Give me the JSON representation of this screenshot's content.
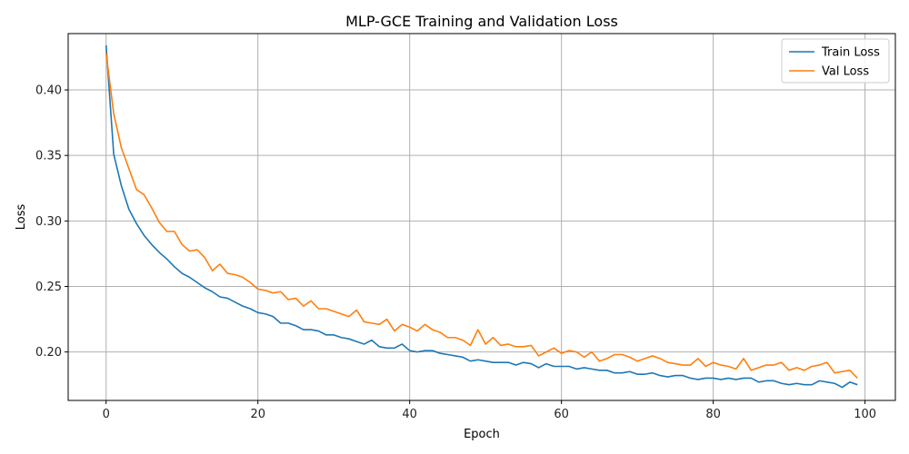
{
  "chart_data": {
    "type": "line",
    "title": "MLP-GCE Training and Validation Loss",
    "xlabel": "Epoch",
    "ylabel": "Loss",
    "xlim": [
      -5,
      104
    ],
    "ylim": [
      0.163,
      0.443
    ],
    "xticks": [
      0,
      20,
      40,
      60,
      80,
      100
    ],
    "yticks": [
      0.2,
      0.25,
      0.3,
      0.35,
      0.4
    ],
    "ytick_labels": [
      "0.20",
      "0.25",
      "0.30",
      "0.35",
      "0.40"
    ],
    "grid": true,
    "legend": "top-right",
    "series": [
      {
        "name": "Train Loss",
        "color": "#1f77b4",
        "values": [
          0.434,
          0.351,
          0.327,
          0.309,
          0.298,
          0.289,
          0.282,
          0.276,
          0.271,
          0.265,
          0.26,
          0.257,
          0.253,
          0.249,
          0.246,
          0.242,
          0.241,
          0.238,
          0.235,
          0.233,
          0.23,
          0.229,
          0.227,
          0.222,
          0.222,
          0.22,
          0.217,
          0.217,
          0.216,
          0.213,
          0.213,
          0.211,
          0.21,
          0.208,
          0.206,
          0.209,
          0.204,
          0.203,
          0.203,
          0.206,
          0.201,
          0.2,
          0.201,
          0.201,
          0.199,
          0.198,
          0.197,
          0.196,
          0.193,
          0.194,
          0.193,
          0.192,
          0.192,
          0.192,
          0.19,
          0.192,
          0.191,
          0.188,
          0.191,
          0.189,
          0.189,
          0.189,
          0.187,
          0.188,
          0.187,
          0.186,
          0.186,
          0.184,
          0.184,
          0.185,
          0.183,
          0.183,
          0.184,
          0.182,
          0.181,
          0.182,
          0.182,
          0.18,
          0.179,
          0.18,
          0.18,
          0.179,
          0.18,
          0.179,
          0.18,
          0.18,
          0.177,
          0.178,
          0.178,
          0.176,
          0.175,
          0.176,
          0.175,
          0.175,
          0.178,
          0.177,
          0.176,
          0.173,
          0.177,
          0.175
        ]
      },
      {
        "name": "Val Loss",
        "color": "#ff7f0e",
        "values": [
          0.428,
          0.382,
          0.356,
          0.34,
          0.324,
          0.32,
          0.31,
          0.299,
          0.292,
          0.292,
          0.282,
          0.277,
          0.278,
          0.272,
          0.262,
          0.267,
          0.26,
          0.259,
          0.257,
          0.253,
          0.248,
          0.247,
          0.245,
          0.246,
          0.24,
          0.241,
          0.235,
          0.239,
          0.233,
          0.233,
          0.231,
          0.229,
          0.227,
          0.232,
          0.223,
          0.222,
          0.221,
          0.225,
          0.216,
          0.221,
          0.219,
          0.216,
          0.221,
          0.217,
          0.215,
          0.211,
          0.211,
          0.209,
          0.205,
          0.217,
          0.206,
          0.211,
          0.205,
          0.206,
          0.204,
          0.204,
          0.205,
          0.197,
          0.2,
          0.203,
          0.199,
          0.201,
          0.2,
          0.196,
          0.2,
          0.193,
          0.195,
          0.198,
          0.198,
          0.196,
          0.193,
          0.195,
          0.197,
          0.195,
          0.192,
          0.191,
          0.19,
          0.19,
          0.195,
          0.189,
          0.192,
          0.19,
          0.189,
          0.187,
          0.195,
          0.186,
          0.188,
          0.19,
          0.19,
          0.192,
          0.186,
          0.188,
          0.186,
          0.189,
          0.19,
          0.192,
          0.184,
          0.185,
          0.186,
          0.18
        ]
      }
    ]
  }
}
